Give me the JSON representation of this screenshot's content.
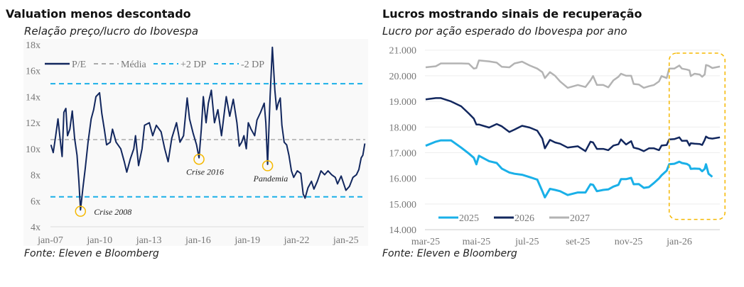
{
  "chart_data": [
    {
      "type": "line",
      "title": "Valuation menos descontado",
      "subtitle": "Relação preço/lucro do Ibovespa",
      "source": "Fonte: Eleven e Bloomberg",
      "xlabel": "",
      "ylabel": "",
      "ylim": [
        4,
        18
      ],
      "y_ticks": [
        "4x",
        "6x",
        "8x",
        "10x",
        "12x",
        "14x",
        "16x",
        "18x"
      ],
      "x_ticks": [
        {
          "label": "jan-07",
          "x": 2007
        },
        {
          "label": "jan-10",
          "x": 2010
        },
        {
          "label": "jan-13",
          "x": 2013
        },
        {
          "label": "jan-16",
          "x": 2016
        },
        {
          "label": "jan-19",
          "x": 2019
        },
        {
          "label": "jan-22",
          "x": 2022
        },
        {
          "label": "jan-25",
          "x": 2025
        }
      ],
      "legend": {
        "placement": "top",
        "entries": [
          "P/E",
          "Média",
          "+2 DP",
          "-2 DP"
        ]
      },
      "reference_lines": {
        "mean": 10.7,
        "plus2sd": 15.0,
        "minus2sd": 6.3
      },
      "colors": {
        "pe": "#12275e",
        "mean": "#aaaaaa",
        "sd": "#1ab0e8",
        "marker": "#f5b800"
      },
      "annotations": [
        {
          "label": "Crise 2008",
          "x": 2008.83,
          "y": 5.3
        },
        {
          "label": "Crise 2016",
          "x": 2016.05,
          "y": 9.3
        },
        {
          "label": "Pandemia",
          "x": 2020.23,
          "y": 8.8
        }
      ],
      "series": [
        {
          "name": "P/E",
          "x": [
            2007.03,
            2007.17,
            2007.32,
            2007.46,
            2007.61,
            2007.71,
            2007.82,
            2007.94,
            2008.04,
            2008.18,
            2008.33,
            2008.47,
            2008.62,
            2008.73,
            2008.83,
            2008.98,
            2009.12,
            2009.29,
            2009.48,
            2009.63,
            2009.77,
            2009.99,
            2010.13,
            2010.28,
            2010.42,
            2010.64,
            2010.78,
            2011.0,
            2011.28,
            2011.5,
            2011.65,
            2011.86,
            2012.08,
            2012.18,
            2012.37,
            2012.58,
            2012.73,
            2013.02,
            2013.23,
            2013.45,
            2013.74,
            2013.96,
            2014.17,
            2014.39,
            2014.68,
            2014.89,
            2015.11,
            2015.33,
            2015.47,
            2015.69,
            2015.9,
            2016.05,
            2016.19,
            2016.31,
            2016.48,
            2016.62,
            2016.8,
            2016.99,
            2017.2,
            2017.42,
            2017.71,
            2017.92,
            2018.14,
            2018.36,
            2018.5,
            2018.65,
            2018.79,
            2018.93,
            2019.05,
            2019.22,
            2019.44,
            2019.58,
            2019.8,
            2020.02,
            2020.12,
            2020.23,
            2020.38,
            2020.52,
            2020.67,
            2020.78,
            2020.88,
            2021.0,
            2021.1,
            2021.24,
            2021.39,
            2021.53,
            2021.68,
            2021.82,
            2022.04,
            2022.25,
            2022.4,
            2022.51,
            2022.69,
            2022.9,
            2023.05,
            2023.26,
            2023.48,
            2023.7,
            2023.91,
            2024.13,
            2024.35,
            2024.49,
            2024.71,
            2025.0,
            2025.21,
            2025.43,
            2025.64,
            2025.79,
            2025.93,
            2026.03,
            2026.15
          ],
          "values": [
            10.3,
            9.7,
            11.0,
            12.3,
            10.5,
            9.4,
            12.8,
            13.1,
            11.0,
            11.5,
            12.9,
            10.8,
            9.5,
            7.5,
            5.3,
            7.0,
            8.5,
            10.5,
            12.3,
            13.0,
            14.0,
            14.3,
            12.7,
            11.5,
            10.3,
            10.5,
            11.5,
            10.5,
            10.0,
            9.0,
            8.2,
            9.2,
            10.0,
            11.0,
            8.7,
            10.0,
            11.8,
            12.0,
            11.0,
            11.8,
            11.3,
            10.0,
            9.0,
            10.8,
            12.0,
            10.5,
            11.0,
            13.9,
            12.3,
            11.2,
            10.3,
            9.3,
            11.5,
            14.0,
            12.0,
            13.5,
            14.5,
            12.0,
            13.0,
            11.0,
            14.0,
            12.5,
            13.8,
            12.0,
            10.2,
            10.5,
            11.0,
            10.0,
            12.0,
            11.5,
            11.0,
            12.2,
            12.8,
            13.5,
            12.0,
            8.8,
            14.0,
            17.8,
            14.5,
            13.0,
            13.5,
            13.9,
            11.8,
            10.5,
            10.3,
            9.5,
            8.3,
            7.8,
            8.3,
            8.1,
            6.5,
            6.2,
            7.0,
            7.5,
            6.9,
            7.5,
            8.3,
            8.0,
            8.3,
            8.0,
            7.8,
            7.3,
            7.9,
            6.8,
            7.1,
            7.8,
            8.0,
            8.4,
            9.3,
            9.5,
            10.4
          ]
        }
      ]
    },
    {
      "type": "line",
      "title": "Lucros mostrando sinais de recuperação",
      "subtitle": "Lucro por ação esperado do Ibovespa por ano",
      "source": "Fonte: Eleven e Bloomberg",
      "xlabel": "",
      "ylabel": "",
      "x_unit": "months since mar-25",
      "ylim": [
        14000,
        21000
      ],
      "y_ticks": [
        "14.000",
        "15.000",
        "16.000",
        "17.000",
        "18.000",
        "19.000",
        "20.000",
        "21.000"
      ],
      "x_ticks": [
        {
          "label": "mar-25",
          "x": 0
        },
        {
          "label": "mai-25",
          "x": 2
        },
        {
          "label": "jul-25",
          "x": 4
        },
        {
          "label": "set-25",
          "x": 6
        },
        {
          "label": "nov-25",
          "x": 8
        },
        {
          "label": "jan-26",
          "x": 10
        }
      ],
      "legend": {
        "placement": "bottom-left",
        "entries": [
          "2025",
          "2026",
          "2027"
        ]
      },
      "highlight": {
        "x": [
          9.6,
          11.8
        ],
        "y": [
          14400,
          20880
        ],
        "color": "#f5b800"
      },
      "x": [
        0,
        0.4,
        0.6,
        1.0,
        1.4,
        1.7,
        1.9,
        2.0,
        2.1,
        2.5,
        2.8,
        3.0,
        3.3,
        3.5,
        3.8,
        4.1,
        4.4,
        4.6,
        4.7,
        4.9,
        5.1,
        5.3,
        5.6,
        6.0,
        6.3,
        6.5,
        6.6,
        6.75,
        7.0,
        7.2,
        7.4,
        7.6,
        7.7,
        7.9,
        8.1,
        8.2,
        8.4,
        8.6,
        8.8,
        9.0,
        9.2,
        9.3,
        9.5,
        9.6,
        9.8,
        10.0,
        10.1,
        10.3,
        10.4,
        10.45,
        10.6,
        10.8,
        10.9,
        11.0,
        11.05,
        11.15,
        11.3,
        11.6
      ],
      "series": [
        {
          "name": "2025",
          "color": "#1ab0e8",
          "values": [
            17270,
            17430,
            17480,
            17480,
            17200,
            16970,
            16800,
            16550,
            16880,
            16670,
            16600,
            16380,
            16230,
            16180,
            16140,
            16050,
            15950,
            15500,
            15260,
            15590,
            15550,
            15500,
            15350,
            15450,
            15450,
            15770,
            15750,
            15500,
            15550,
            15570,
            15680,
            15750,
            15970,
            15970,
            16020,
            15770,
            15780,
            15630,
            15660,
            15820,
            16000,
            16120,
            16300,
            16550,
            16570,
            16650,
            16600,
            16560,
            16500,
            16370,
            16380,
            16370,
            16280,
            16370,
            16550,
            16180,
            16060,
            null
          ]
        },
        {
          "name": "2026",
          "color": "#12275e",
          "values": [
            19080,
            19130,
            19130,
            19000,
            18810,
            18530,
            18330,
            18100,
            18100,
            17980,
            18120,
            18030,
            17810,
            17900,
            18050,
            17980,
            17860,
            17550,
            17170,
            17500,
            17400,
            17350,
            17200,
            17250,
            17060,
            17430,
            17400,
            17150,
            17150,
            17100,
            17280,
            17330,
            17520,
            17320,
            17450,
            17200,
            17150,
            17060,
            17170,
            17170,
            17100,
            17280,
            17300,
            17520,
            17530,
            17600,
            17460,
            17470,
            17280,
            17370,
            17350,
            17340,
            17300,
            17500,
            17630,
            17570,
            17550,
            17600
          ]
        },
        {
          "name": "2027",
          "color": "#b3b3b3",
          "values": [
            20330,
            20370,
            20480,
            20480,
            20480,
            20470,
            20280,
            20300,
            20600,
            20560,
            20510,
            20350,
            20330,
            20480,
            20550,
            20400,
            20280,
            20140,
            19910,
            20140,
            20000,
            19780,
            19530,
            19640,
            19560,
            19820,
            19990,
            19640,
            19640,
            19550,
            19820,
            19960,
            20080,
            20000,
            20000,
            19680,
            19660,
            19530,
            19590,
            19640,
            19780,
            19990,
            19910,
            20280,
            20280,
            20400,
            20280,
            20240,
            20210,
            19990,
            20080,
            20050,
            19960,
            20050,
            20420,
            20390,
            20300,
            20360
          ]
        }
      ]
    }
  ]
}
